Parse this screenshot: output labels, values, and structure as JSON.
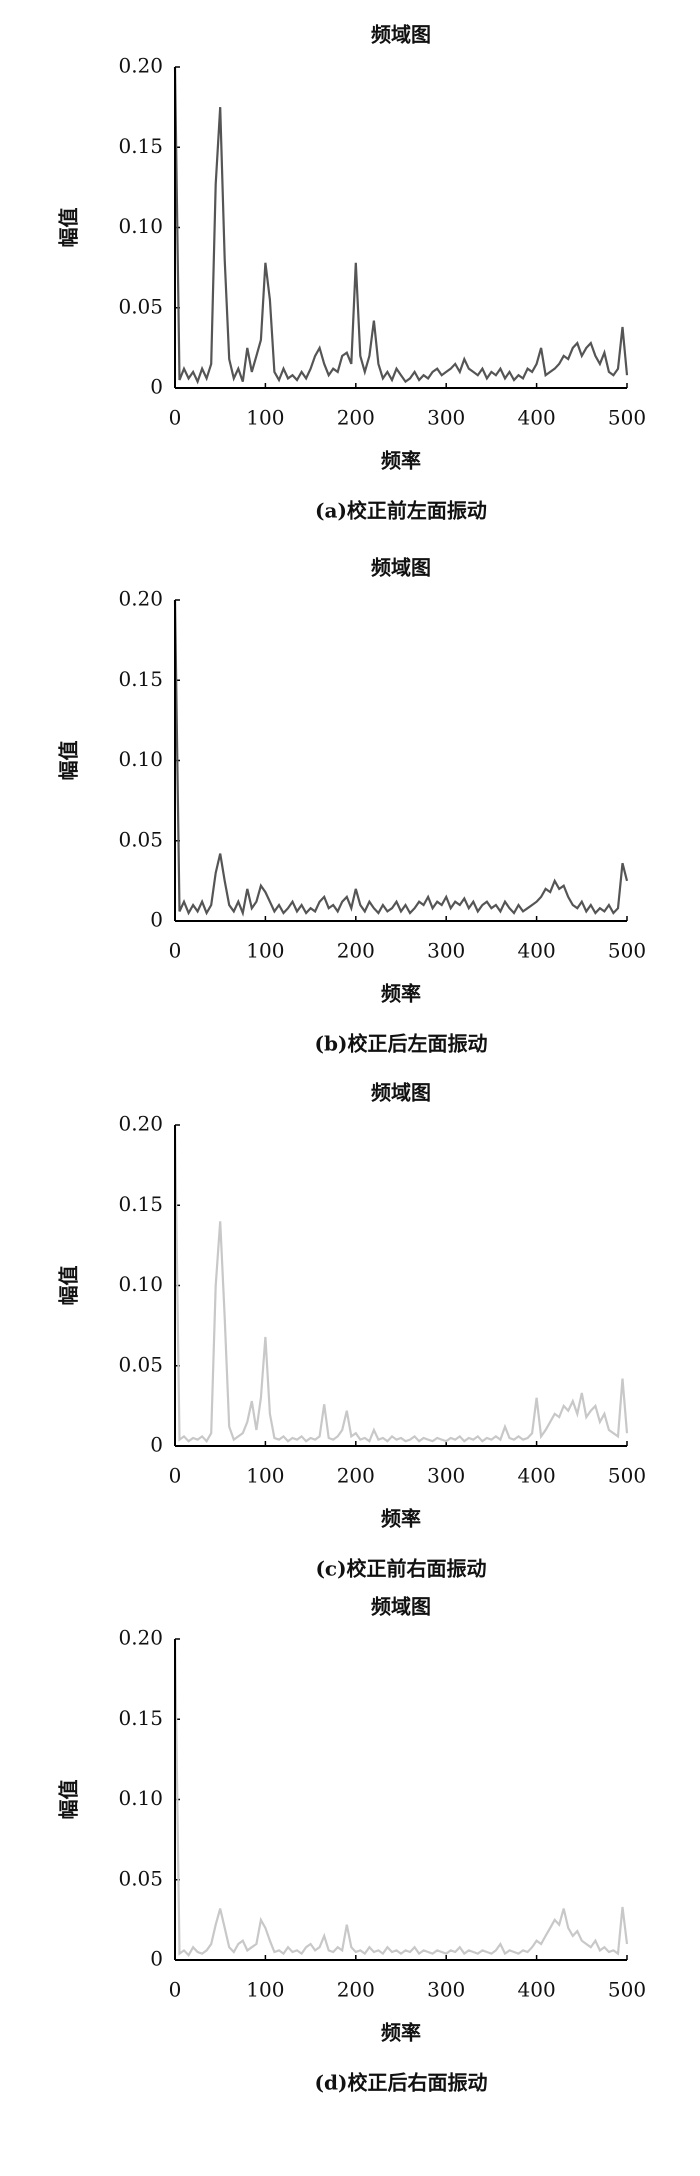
{
  "chart_data": [
    {
      "type": "line",
      "title": "频域图",
      "xlabel": "频率",
      "ylabel": "幅值",
      "caption": "(a)校正前左面振动",
      "color": "#555555",
      "xlim": [
        0,
        500
      ],
      "ylim": [
        0,
        0.2
      ],
      "xticks": [
        0,
        100,
        200,
        300,
        400,
        500
      ],
      "yticks": [
        0,
        {
          "value": 0.05,
          "label": "0.05"
        },
        {
          "value": 0.1,
          "label": "0.10"
        },
        {
          "value": 0.15,
          "label": "0.15"
        },
        {
          "value": 0.2,
          "label": "0.20"
        }
      ],
      "x": [
        0,
        5,
        10,
        15,
        20,
        25,
        30,
        35,
        40,
        45,
        50,
        55,
        60,
        65,
        70,
        75,
        80,
        85,
        90,
        95,
        100,
        105,
        110,
        115,
        120,
        125,
        130,
        135,
        140,
        145,
        150,
        155,
        160,
        165,
        170,
        175,
        180,
        185,
        190,
        195,
        200,
        205,
        210,
        215,
        220,
        225,
        230,
        235,
        240,
        245,
        250,
        255,
        260,
        265,
        270,
        275,
        280,
        285,
        290,
        295,
        300,
        305,
        310,
        315,
        320,
        325,
        330,
        335,
        340,
        345,
        350,
        355,
        360,
        365,
        370,
        375,
        380,
        385,
        390,
        395,
        400,
        405,
        410,
        415,
        420,
        425,
        430,
        435,
        440,
        445,
        450,
        455,
        460,
        465,
        470,
        475,
        480,
        485,
        490,
        495,
        500
      ],
      "values": [
        0.2,
        0.005,
        0.012,
        0.006,
        0.01,
        0.004,
        0.012,
        0.006,
        0.015,
        0.127,
        0.175,
        0.08,
        0.018,
        0.006,
        0.012,
        0.004,
        0.025,
        0.01,
        0.02,
        0.03,
        0.078,
        0.055,
        0.01,
        0.005,
        0.012,
        0.006,
        0.008,
        0.005,
        0.01,
        0.006,
        0.012,
        0.02,
        0.025,
        0.015,
        0.008,
        0.012,
        0.01,
        0.02,
        0.022,
        0.015,
        0.078,
        0.02,
        0.01,
        0.02,
        0.042,
        0.015,
        0.006,
        0.01,
        0.005,
        0.012,
        0.008,
        0.004,
        0.006,
        0.01,
        0.005,
        0.008,
        0.006,
        0.01,
        0.012,
        0.008,
        0.01,
        0.012,
        0.015,
        0.01,
        0.018,
        0.012,
        0.01,
        0.008,
        0.012,
        0.006,
        0.01,
        0.008,
        0.012,
        0.006,
        0.01,
        0.005,
        0.008,
        0.006,
        0.012,
        0.01,
        0.015,
        0.025,
        0.008,
        0.01,
        0.012,
        0.015,
        0.02,
        0.018,
        0.025,
        0.028,
        0.02,
        0.025,
        0.028,
        0.02,
        0.015,
        0.022,
        0.01,
        0.008,
        0.012,
        0.038,
        0.008
      ]
    },
    {
      "type": "line",
      "title": "频域图",
      "xlabel": "频率",
      "ylabel": "幅值",
      "caption": "(b)校正后左面振动",
      "color": "#555555",
      "xlim": [
        0,
        500
      ],
      "ylim": [
        0,
        0.2
      ],
      "xticks": [
        0,
        100,
        200,
        300,
        400,
        500
      ],
      "yticks": [
        0,
        {
          "value": 0.05,
          "label": "0.05"
        },
        {
          "value": 0.1,
          "label": "0.10"
        },
        {
          "value": 0.15,
          "label": "0.15"
        },
        {
          "value": 0.2,
          "label": "0.20"
        }
      ],
      "x": [
        0,
        5,
        10,
        15,
        20,
        25,
        30,
        35,
        40,
        45,
        50,
        55,
        60,
        65,
        70,
        75,
        80,
        85,
        90,
        95,
        100,
        105,
        110,
        115,
        120,
        125,
        130,
        135,
        140,
        145,
        150,
        155,
        160,
        165,
        170,
        175,
        180,
        185,
        190,
        195,
        200,
        205,
        210,
        215,
        220,
        225,
        230,
        235,
        240,
        245,
        250,
        255,
        260,
        265,
        270,
        275,
        280,
        285,
        290,
        295,
        300,
        305,
        310,
        315,
        320,
        325,
        330,
        335,
        340,
        345,
        350,
        355,
        360,
        365,
        370,
        375,
        380,
        385,
        390,
        395,
        400,
        405,
        410,
        415,
        420,
        425,
        430,
        435,
        440,
        445,
        450,
        455,
        460,
        465,
        470,
        475,
        480,
        485,
        490,
        495,
        500
      ],
      "values": [
        0.2,
        0.006,
        0.012,
        0.005,
        0.01,
        0.006,
        0.012,
        0.005,
        0.01,
        0.03,
        0.042,
        0.025,
        0.01,
        0.006,
        0.012,
        0.005,
        0.02,
        0.008,
        0.012,
        0.022,
        0.018,
        0.012,
        0.006,
        0.01,
        0.005,
        0.008,
        0.012,
        0.006,
        0.01,
        0.005,
        0.008,
        0.006,
        0.012,
        0.015,
        0.008,
        0.01,
        0.006,
        0.012,
        0.015,
        0.008,
        0.02,
        0.01,
        0.006,
        0.012,
        0.008,
        0.005,
        0.01,
        0.006,
        0.008,
        0.012,
        0.006,
        0.01,
        0.005,
        0.008,
        0.012,
        0.01,
        0.015,
        0.008,
        0.012,
        0.01,
        0.015,
        0.008,
        0.012,
        0.01,
        0.014,
        0.008,
        0.012,
        0.006,
        0.01,
        0.012,
        0.008,
        0.01,
        0.006,
        0.012,
        0.008,
        0.005,
        0.01,
        0.006,
        0.008,
        0.01,
        0.012,
        0.015,
        0.02,
        0.018,
        0.025,
        0.02,
        0.022,
        0.015,
        0.01,
        0.008,
        0.012,
        0.006,
        0.01,
        0.005,
        0.008,
        0.006,
        0.01,
        0.005,
        0.008,
        0.036,
        0.025
      ]
    },
    {
      "type": "line",
      "title": "频域图",
      "xlabel": "频率",
      "ylabel": "幅值",
      "caption": "(c)校正前右面振动",
      "color": "#c8c8c8",
      "xlim": [
        0,
        500
      ],
      "ylim": [
        0,
        0.2
      ],
      "xticks": [
        0,
        100,
        200,
        300,
        400,
        500
      ],
      "yticks": [
        0,
        {
          "value": 0.05,
          "label": "0.05"
        },
        {
          "value": 0.1,
          "label": "0.10"
        },
        {
          "value": 0.15,
          "label": "0.15"
        },
        {
          "value": 0.2,
          "label": "0.20"
        }
      ],
      "x": [
        0,
        5,
        10,
        15,
        20,
        25,
        30,
        35,
        40,
        45,
        50,
        55,
        60,
        65,
        70,
        75,
        80,
        85,
        90,
        95,
        100,
        105,
        110,
        115,
        120,
        125,
        130,
        135,
        140,
        145,
        150,
        155,
        160,
        165,
        170,
        175,
        180,
        185,
        190,
        195,
        200,
        205,
        210,
        215,
        220,
        225,
        230,
        235,
        240,
        245,
        250,
        255,
        260,
        265,
        270,
        275,
        280,
        285,
        290,
        295,
        300,
        305,
        310,
        315,
        320,
        325,
        330,
        335,
        340,
        345,
        350,
        355,
        360,
        365,
        370,
        375,
        380,
        385,
        390,
        395,
        400,
        405,
        410,
        415,
        420,
        425,
        430,
        435,
        440,
        445,
        450,
        455,
        460,
        465,
        470,
        475,
        480,
        485,
        490,
        495,
        500
      ],
      "values": [
        0.2,
        0.004,
        0.006,
        0.003,
        0.005,
        0.004,
        0.006,
        0.003,
        0.008,
        0.1,
        0.14,
        0.08,
        0.012,
        0.004,
        0.006,
        0.008,
        0.015,
        0.028,
        0.01,
        0.03,
        0.068,
        0.02,
        0.005,
        0.004,
        0.006,
        0.003,
        0.005,
        0.004,
        0.006,
        0.003,
        0.005,
        0.004,
        0.006,
        0.026,
        0.005,
        0.004,
        0.006,
        0.01,
        0.022,
        0.006,
        0.008,
        0.004,
        0.005,
        0.003,
        0.01,
        0.004,
        0.005,
        0.003,
        0.006,
        0.004,
        0.005,
        0.003,
        0.004,
        0.006,
        0.003,
        0.005,
        0.004,
        0.003,
        0.005,
        0.004,
        0.003,
        0.005,
        0.004,
        0.006,
        0.003,
        0.005,
        0.004,
        0.006,
        0.003,
        0.005,
        0.004,
        0.006,
        0.004,
        0.012,
        0.005,
        0.004,
        0.006,
        0.004,
        0.005,
        0.008,
        0.03,
        0.006,
        0.01,
        0.015,
        0.02,
        0.018,
        0.025,
        0.022,
        0.028,
        0.02,
        0.033,
        0.018,
        0.022,
        0.025,
        0.015,
        0.02,
        0.01,
        0.008,
        0.006,
        0.042,
        0.008
      ]
    },
    {
      "type": "line",
      "title": "频域图",
      "xlabel": "频率",
      "ylabel": "幅值",
      "caption": "(d)校正后右面振动",
      "color": "#c8c8c8",
      "xlim": [
        0,
        500
      ],
      "ylim": [
        0,
        0.2
      ],
      "xticks": [
        0,
        100,
        200,
        300,
        400,
        500
      ],
      "yticks": [
        0,
        {
          "value": 0.05,
          "label": "0.05"
        },
        {
          "value": 0.1,
          "label": "0.10"
        },
        {
          "value": 0.15,
          "label": "0.15"
        },
        {
          "value": 0.2,
          "label": "0.20"
        }
      ],
      "x": [
        0,
        5,
        10,
        15,
        20,
        25,
        30,
        35,
        40,
        45,
        50,
        55,
        60,
        65,
        70,
        75,
        80,
        85,
        90,
        95,
        100,
        105,
        110,
        115,
        120,
        125,
        130,
        135,
        140,
        145,
        150,
        155,
        160,
        165,
        170,
        175,
        180,
        185,
        190,
        195,
        200,
        205,
        210,
        215,
        220,
        225,
        230,
        235,
        240,
        245,
        250,
        255,
        260,
        265,
        270,
        275,
        280,
        285,
        290,
        295,
        300,
        305,
        310,
        315,
        320,
        325,
        330,
        335,
        340,
        345,
        350,
        355,
        360,
        365,
        370,
        375,
        380,
        385,
        390,
        395,
        400,
        405,
        410,
        415,
        420,
        425,
        430,
        435,
        440,
        445,
        450,
        455,
        460,
        465,
        470,
        475,
        480,
        485,
        490,
        495,
        500
      ],
      "values": [
        0.2,
        0.004,
        0.006,
        0.003,
        0.008,
        0.005,
        0.004,
        0.006,
        0.01,
        0.022,
        0.032,
        0.02,
        0.008,
        0.005,
        0.01,
        0.012,
        0.006,
        0.008,
        0.01,
        0.025,
        0.02,
        0.012,
        0.005,
        0.006,
        0.004,
        0.008,
        0.005,
        0.006,
        0.004,
        0.008,
        0.01,
        0.006,
        0.008,
        0.015,
        0.006,
        0.005,
        0.008,
        0.006,
        0.022,
        0.008,
        0.005,
        0.006,
        0.004,
        0.008,
        0.005,
        0.006,
        0.004,
        0.008,
        0.005,
        0.006,
        0.004,
        0.006,
        0.005,
        0.008,
        0.004,
        0.006,
        0.005,
        0.004,
        0.006,
        0.005,
        0.004,
        0.006,
        0.005,
        0.008,
        0.004,
        0.006,
        0.005,
        0.004,
        0.006,
        0.005,
        0.004,
        0.006,
        0.01,
        0.004,
        0.006,
        0.005,
        0.004,
        0.006,
        0.005,
        0.008,
        0.012,
        0.01,
        0.015,
        0.02,
        0.025,
        0.022,
        0.032,
        0.02,
        0.015,
        0.018,
        0.012,
        0.01,
        0.008,
        0.012,
        0.006,
        0.008,
        0.005,
        0.006,
        0.004,
        0.033,
        0.01
      ]
    }
  ]
}
